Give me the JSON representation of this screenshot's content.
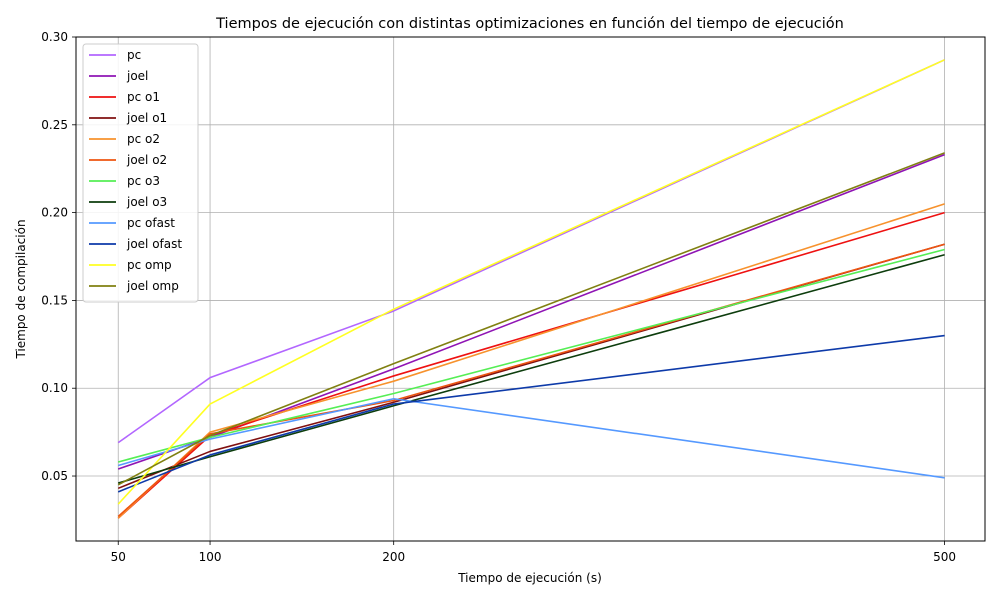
{
  "chart_data": {
    "type": "line",
    "title": "Tiempos de ejecución con distintas optimizaciones en función del tiempo de ejecución",
    "xlabel": "Tiempo de ejecución (s)",
    "ylabel": "Tiempo de compilación",
    "x": [
      50,
      100,
      200,
      500
    ],
    "xlim": [
      27,
      522
    ],
    "ylim": [
      0.013,
      0.3
    ],
    "xticks": [
      "50",
      "100",
      "200",
      "500"
    ],
    "yticks": [
      "0.05",
      "0.10",
      "0.15",
      "0.20",
      "0.25",
      "0.30"
    ],
    "grid": true,
    "legend_position": "top-left",
    "series": [
      {
        "name": "pc",
        "color": "#b266ff",
        "values": [
          0.069,
          0.106,
          0.144,
          0.287
        ]
      },
      {
        "name": "joel",
        "color": "#8f14b4",
        "values": [
          0.054,
          0.072,
          0.111,
          0.233
        ]
      },
      {
        "name": "pc o1",
        "color": "#ee1111",
        "values": [
          0.026,
          0.073,
          0.107,
          0.2
        ]
      },
      {
        "name": "joel o1",
        "color": "#801010",
        "values": [
          0.043,
          0.064,
          0.092,
          0.182
        ]
      },
      {
        "name": "pc o2",
        "color": "#f7922d",
        "values": [
          0.026,
          0.075,
          0.104,
          0.205
        ]
      },
      {
        "name": "joel o2",
        "color": "#ee5511",
        "values": [
          0.027,
          0.074,
          0.093,
          0.182
        ]
      },
      {
        "name": "pc o3",
        "color": "#55ee55",
        "values": [
          0.058,
          0.072,
          0.097,
          0.179
        ]
      },
      {
        "name": "joel o3",
        "color": "#0d3d0d",
        "values": [
          0.046,
          0.061,
          0.09,
          0.176
        ]
      },
      {
        "name": "pc ofast",
        "color": "#5599ff",
        "values": [
          0.056,
          0.071,
          0.094,
          0.049
        ]
      },
      {
        "name": "joel ofast",
        "color": "#0d3aa9",
        "values": [
          0.041,
          0.062,
          0.091,
          0.13
        ]
      },
      {
        "name": "pc omp",
        "color": "#ffff22",
        "values": [
          0.034,
          0.091,
          0.145,
          0.287
        ]
      },
      {
        "name": "joel omp",
        "color": "#808011",
        "values": [
          0.045,
          0.073,
          0.114,
          0.234
        ]
      }
    ]
  }
}
